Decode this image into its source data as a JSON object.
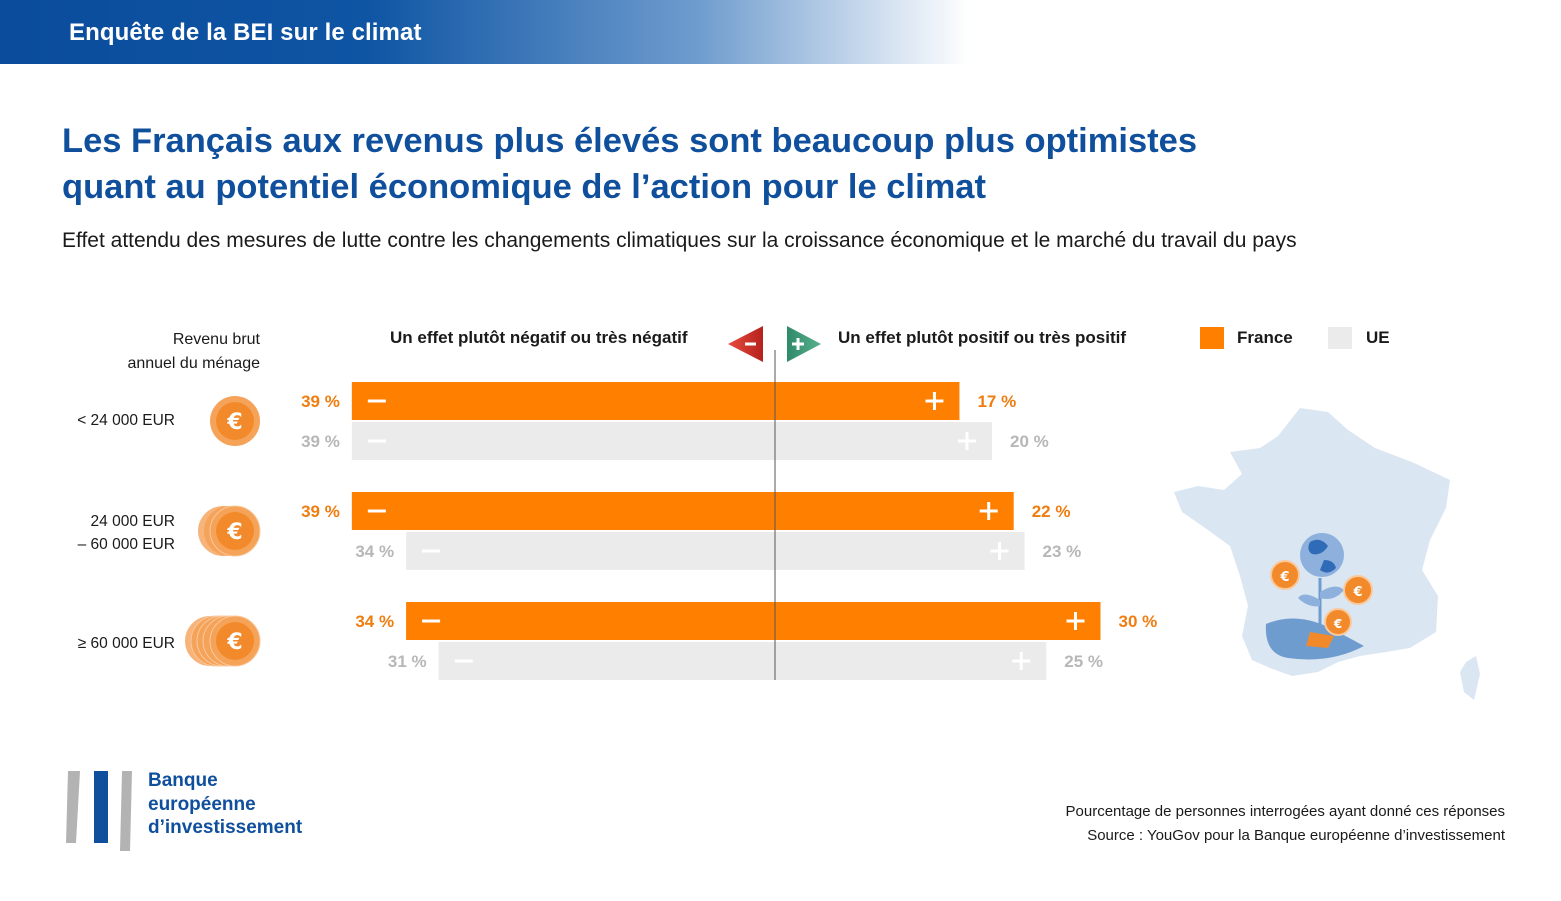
{
  "header": {
    "title": "Enquête de la BEI sur le climat"
  },
  "headline": {
    "line1": "Les Français aux revenus plus élevés sont beaucoup plus optimistes",
    "line2": "quant au potentiel économique de l’action pour le climat"
  },
  "subtitle": "Effet attendu des mesures de lutte contre les changements climatiques sur la croissance économique et le marché du travail du pays",
  "income_heading": {
    "line1": "Revenu brut",
    "line2": "annuel du ménage"
  },
  "legend": {
    "negative": "Un effet plutôt négatif ou très négatif",
    "positive": "Un effet plutôt positif ou très positif",
    "france": "France",
    "eu": "UE"
  },
  "brackets": [
    {
      "line1": "< 24 000 EUR",
      "line2": ""
    },
    {
      "line1": "24 000 EUR",
      "line2": "– 60 000 EUR"
    },
    {
      "line1": "≥ 60 000 EUR",
      "line2": ""
    }
  ],
  "chart_data": {
    "type": "bar",
    "orientation": "horizontal-diverging",
    "categories": [
      "< 24 000 EUR",
      "24 000 EUR – 60 000 EUR",
      "≥ 60 000 EUR"
    ],
    "unit": "%",
    "series": [
      {
        "name": "France",
        "color": "#ff7f00",
        "negative": [
          39,
          39,
          34
        ],
        "positive": [
          17,
          22,
          30
        ]
      },
      {
        "name": "UE",
        "color": "#ebebeb",
        "negative": [
          39,
          34,
          31
        ],
        "positive": [
          20,
          23,
          25
        ]
      }
    ],
    "label_colors": {
      "France": "#ef7d10",
      "UE": "#b7b7b7"
    }
  },
  "logo": {
    "line1": "Banque",
    "line2": "européenne",
    "line3": "d’investissement"
  },
  "footer": {
    "note": "Pourcentage de personnes interrogées ayant donné ces réponses",
    "source": "Source : YouGov pour la Banque européenne d’investissement"
  },
  "colors": {
    "brand_blue": "#0f4f9c",
    "france_orange": "#ff7f00",
    "eu_grey": "#ebebeb",
    "negative_red": "#c8302a",
    "positive_green": "#3f9a76",
    "map_light": "#dbe6f3"
  }
}
